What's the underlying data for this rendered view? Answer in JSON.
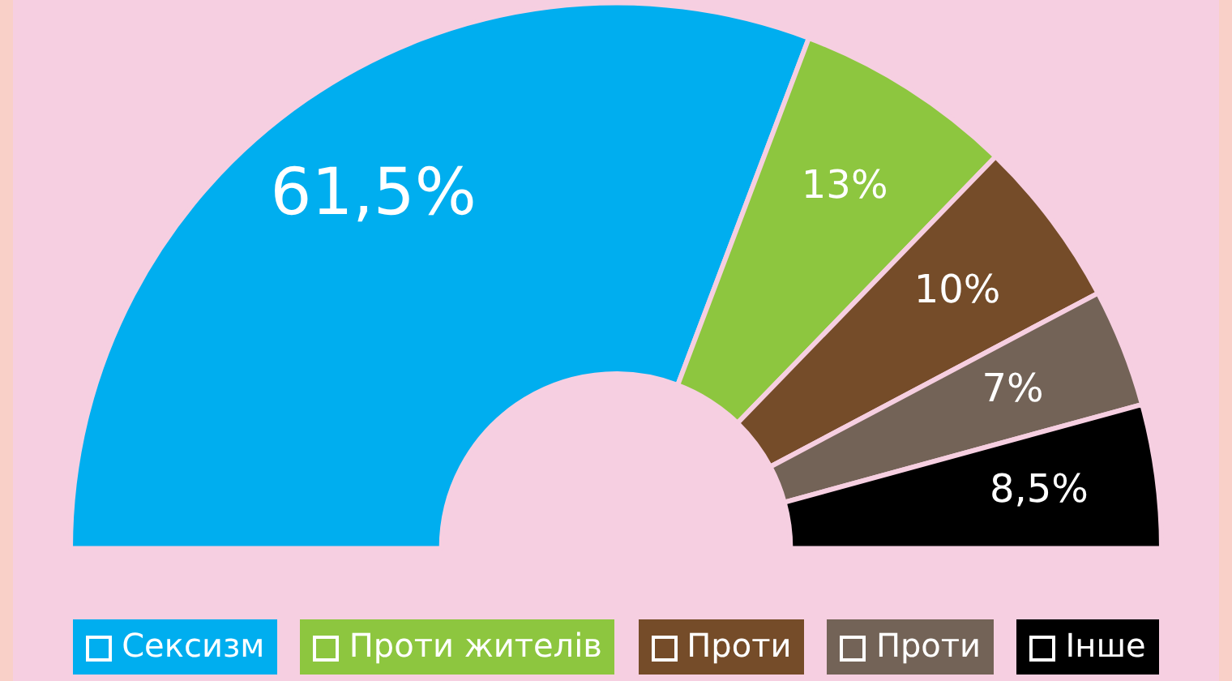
{
  "chart_data": {
    "type": "donut",
    "categories": [
      "Сексизм",
      "Проти жителів",
      "Проти",
      "Проти",
      "Інше"
    ],
    "values": [
      61.5,
      13,
      10,
      7,
      8.5
    ],
    "colors": [
      "#00aeef",
      "#8dc63f",
      "#754c29",
      "#736357",
      "#000000"
    ],
    "value_labels": [
      "61,5%",
      "13%",
      "10%",
      "7%",
      "8,5%"
    ],
    "legend": "bottom"
  }
}
